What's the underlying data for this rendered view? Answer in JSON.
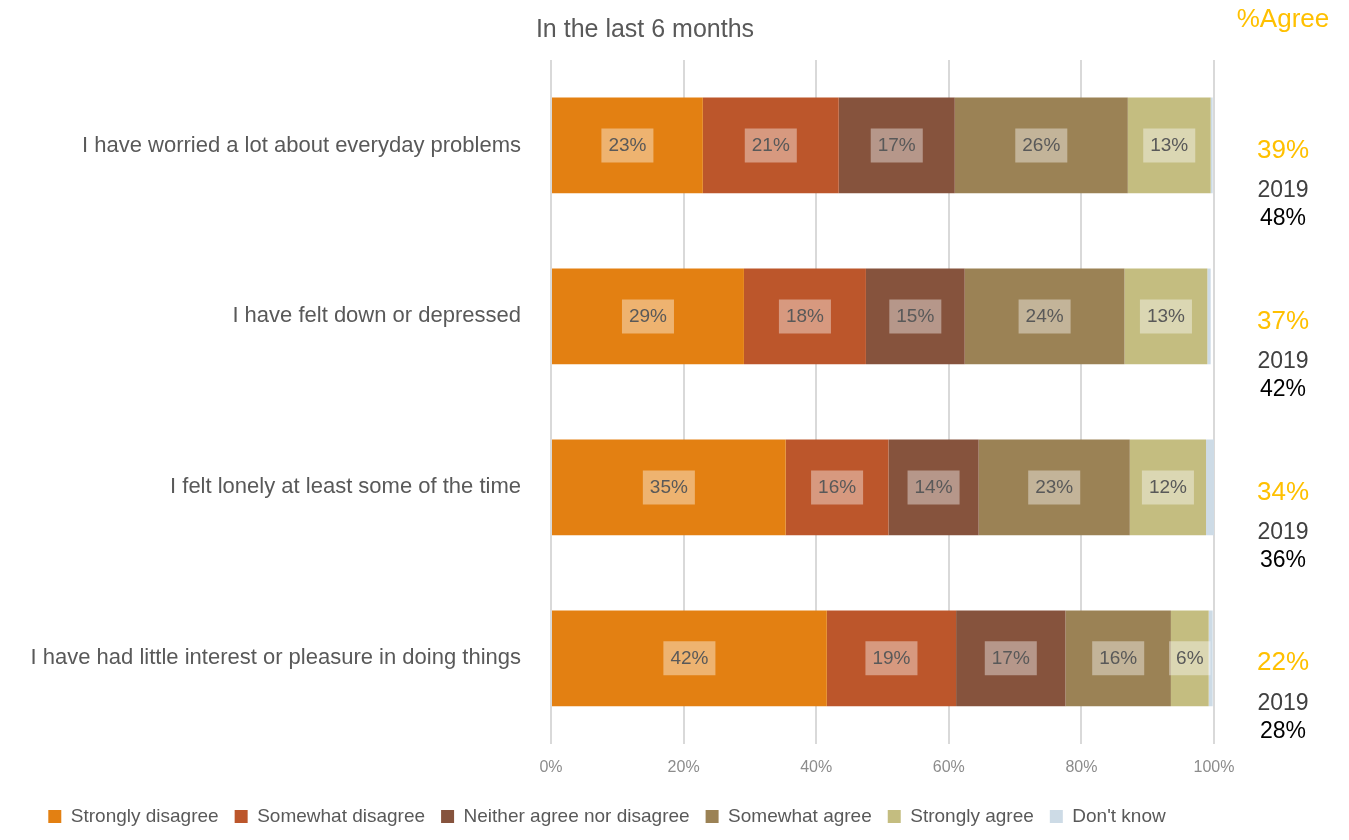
{
  "chart_data": {
    "type": "bar",
    "orientation": "horizontal",
    "stacked": true,
    "title": "In the last 6 months",
    "categories": [
      "I have worried a lot about everyday problems",
      "I have felt down or depressed",
      "I felt lonely at least some of the time",
      "I have had little interest or pleasure in doing things"
    ],
    "series": [
      {
        "name": "Strongly disagree",
        "color": "#e38012",
        "values": [
          22.9,
          29.1,
          35.4,
          41.6
        ],
        "value_labels": [
          "23%",
          "29%",
          "35%",
          "42%"
        ]
      },
      {
        "name": "Somewhat disagree",
        "color": "#bc562b",
        "values": [
          20.5,
          18.4,
          15.5,
          19.5
        ],
        "value_labels": [
          "21%",
          "18%",
          "16%",
          "19%"
        ]
      },
      {
        "name": "Neither agree nor disagree",
        "color": "#86533d",
        "values": [
          17.5,
          14.9,
          13.6,
          16.5
        ],
        "value_labels": [
          "17%",
          "15%",
          "14%",
          "17%"
        ]
      },
      {
        "name": "Somewhat agree",
        "color": "#9b8255",
        "values": [
          26.1,
          24.1,
          22.8,
          15.9
        ],
        "value_labels": [
          "26%",
          "24%",
          "23%",
          "16%"
        ]
      },
      {
        "name": "Strongly agree",
        "color": "#c4bd80",
        "values": [
          12.5,
          12.5,
          11.5,
          5.7
        ],
        "value_labels": [
          "13%",
          "13%",
          "12%",
          "6%"
        ]
      },
      {
        "name": "Don't know",
        "color": "#cddbe6",
        "values": [
          0.3,
          0.5,
          1.2,
          0.6
        ]
      }
    ],
    "xlim": [
      0,
      100
    ],
    "xticks": [
      {
        "value": 0,
        "label": "0%"
      },
      {
        "value": 20,
        "label": "20%"
      },
      {
        "value": 40,
        "label": "40%"
      },
      {
        "value": 60,
        "label": "60%"
      },
      {
        "value": 80,
        "label": "80%"
      },
      {
        "value": 100,
        "label": "100%"
      }
    ],
    "grid": "x",
    "legend": "bottom",
    "annotations": [
      "%Agree",
      "39%",
      "2019",
      "48%",
      "37%",
      "2019",
      "42%",
      "34%",
      "2019",
      "36%",
      "22%",
      "2019",
      "28%"
    ]
  }
}
